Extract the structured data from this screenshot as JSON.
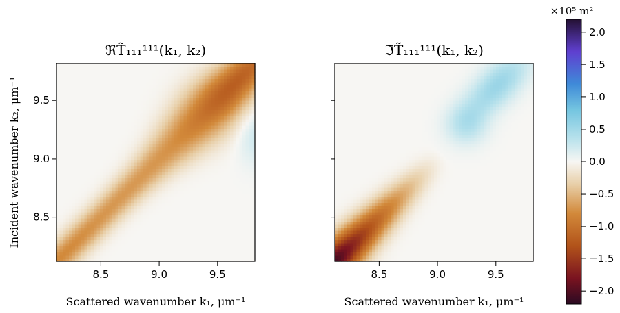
{
  "chart_data": [
    {
      "type": "heatmap",
      "title": "ℜT̃₁₁₁¹¹¹(k₁, k₂)",
      "xlabel": "Scattered wavenumber k₁, μm⁻¹",
      "ylabel": "Incident wavenumber k₂, μm⁻¹",
      "xlim": [
        8.12,
        9.82
      ],
      "ylim": [
        8.12,
        9.82
      ],
      "xticks": [
        "8.5",
        "9.0",
        "9.5"
      ],
      "yticks": [
        "8.5",
        "9.0",
        "9.5"
      ],
      "description_of_field": "negative ridge along diagonal k1 = k2, strongest (~-1.2) near (9.6, 9.6), ~-0.8 at lower end; weak positive lobe near (9.8, 9.2)",
      "sample_points": [
        {
          "x": 8.15,
          "y": 8.15,
          "v": -0.8
        },
        {
          "x": 8.5,
          "y": 8.5,
          "v": -0.65
        },
        {
          "x": 9.0,
          "y": 9.0,
          "v": -0.7
        },
        {
          "x": 9.5,
          "y": 9.5,
          "v": -1.0
        },
        {
          "x": 9.65,
          "y": 9.65,
          "v": -1.2
        },
        {
          "x": 9.78,
          "y": 9.2,
          "v": 0.2
        }
      ]
    },
    {
      "type": "heatmap",
      "title": "ℑT̃₁₁₁¹¹¹(k₁, k₂)",
      "xlabel": "Scattered wavenumber k₁, μm⁻¹",
      "xlim": [
        8.12,
        9.82
      ],
      "ylim": [
        8.12,
        9.82
      ],
      "xticks": [
        "8.5",
        "9.0",
        "9.5"
      ],
      "description_of_field": "strong negative diagonal ridge at low k (~-2.0 near 8.15), fading to zero near 9.0; positive lobe (~0.5-0.6) above the diagonal for k > 9.1",
      "sample_points": [
        {
          "x": 8.15,
          "y": 8.15,
          "v": -2.0
        },
        {
          "x": 8.5,
          "y": 8.5,
          "v": -1.3
        },
        {
          "x": 8.8,
          "y": 8.8,
          "v": -0.6
        },
        {
          "x": 9.05,
          "y": 9.05,
          "v": 0.0
        },
        {
          "x": 9.35,
          "y": 9.45,
          "v": 0.4
        },
        {
          "x": 9.75,
          "y": 9.8,
          "v": 0.6
        }
      ]
    }
  ],
  "colorbar": {
    "label": "×10⁵ m²",
    "min": -2.2,
    "max": 2.2,
    "ticks": [
      "2.0",
      "1.5",
      "1.0",
      "0.5",
      "0.0",
      "−0.5",
      "−1.0",
      "−1.5",
      "−2.0"
    ],
    "tick_values": [
      2.0,
      1.5,
      1.0,
      0.5,
      0.0,
      -0.5,
      -1.0,
      -1.5,
      -2.0
    ],
    "colormap_stops": [
      {
        "v": -2.2,
        "color": "#2b0a22"
      },
      {
        "v": -1.8,
        "color": "#7a1320"
      },
      {
        "v": -1.3,
        "color": "#b2531a"
      },
      {
        "v": -0.8,
        "color": "#d2893a"
      },
      {
        "v": -0.35,
        "color": "#e8cfa8"
      },
      {
        "v": 0.0,
        "color": "#f7f6f3"
      },
      {
        "v": 0.35,
        "color": "#b9e2ec"
      },
      {
        "v": 0.8,
        "color": "#74c5e0"
      },
      {
        "v": 1.2,
        "color": "#3f8ad8"
      },
      {
        "v": 1.7,
        "color": "#5f3fd0"
      },
      {
        "v": 2.2,
        "color": "#241033"
      }
    ]
  }
}
